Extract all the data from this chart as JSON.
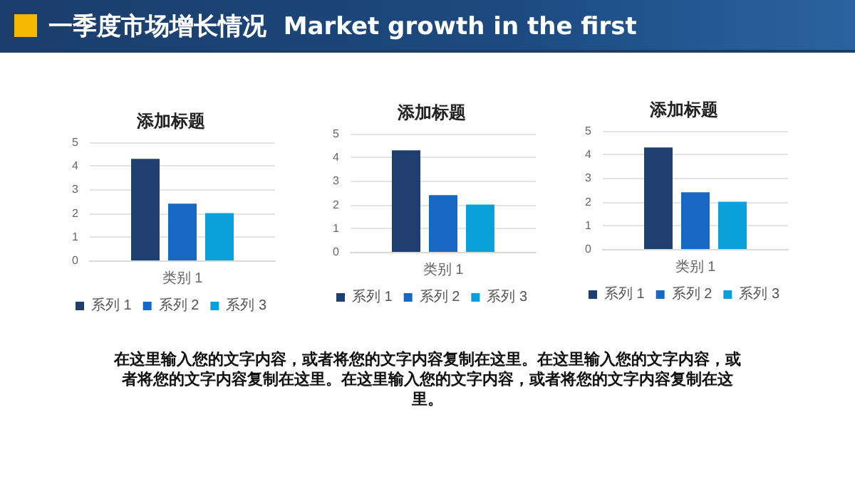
{
  "chart_data": [
    {
      "type": "other",
      "title": "一季度市场增长情况  Market growth in the first",
      "annotations": [
        "在这里输入您的文字内容，或者将您的文字内容复制在这里。在这里输入您的文字内容，或者将您的文字内容复制在这里。在这里输入您的文字内容，或者将您的文字内容复制在这里。"
      ]
    },
    {
      "type": "bar",
      "title": "添加标题",
      "categories": [
        "类别 1"
      ],
      "series": [
        {
          "name": "系列 1",
          "color": "#1f3f6e",
          "values": [
            4.3
          ]
        },
        {
          "name": "系列 2",
          "color": "#1668c4",
          "values": [
            2.4
          ]
        },
        {
          "name": "系列 3",
          "color": "#0aa0dc",
          "values": [
            2.0
          ]
        }
      ],
      "ylim": [
        0,
        5
      ],
      "yticks": [
        0,
        1,
        2,
        3,
        4,
        5
      ],
      "grid": "y",
      "legend": "bottom"
    },
    {
      "type": "bar",
      "title": "添加标题",
      "categories": [
        "类别 1"
      ],
      "series": [
        {
          "name": "系列 1",
          "color": "#1f3f6e",
          "values": [
            4.3
          ]
        },
        {
          "name": "系列 2",
          "color": "#1668c4",
          "values": [
            2.4
          ]
        },
        {
          "name": "系列 3",
          "color": "#0aa0dc",
          "values": [
            2.0
          ]
        }
      ],
      "ylim": [
        0,
        5
      ],
      "yticks": [
        0,
        1,
        2,
        3,
        4,
        5
      ],
      "grid": "y",
      "legend": "bottom"
    },
    {
      "type": "bar",
      "title": "添加标题",
      "categories": [
        "类别 1"
      ],
      "series": [
        {
          "name": "系列 1",
          "color": "#1f3f6e",
          "values": [
            4.3
          ]
        },
        {
          "name": "系列 2",
          "color": "#1668c4",
          "values": [
            2.4
          ]
        },
        {
          "name": "系列 3",
          "color": "#0aa0dc",
          "values": [
            2.0
          ]
        }
      ],
      "ylim": [
        0,
        5
      ],
      "yticks": [
        0,
        1,
        2,
        3,
        4,
        5
      ],
      "grid": "y",
      "legend": "bottom"
    }
  ]
}
